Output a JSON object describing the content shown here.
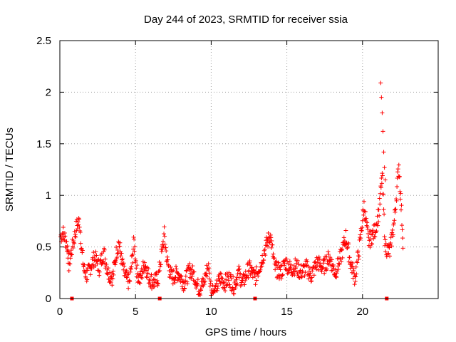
{
  "chart_data": {
    "type": "scatter",
    "title": "Day 244 of 2023, SRMTID for receiver ssia",
    "xlabel": "GPS time / hours",
    "ylabel": "SRMTID / TECUs",
    "xlim": [
      0,
      25
    ],
    "ylim": [
      0,
      2.5
    ],
    "x_ticks": [
      0,
      5,
      10,
      15,
      20
    ],
    "x_tick_labels": [
      "0",
      "5",
      "10",
      "15",
      "20"
    ],
    "y_ticks": [
      0,
      0.5,
      1,
      1.5,
      2,
      2.5
    ],
    "y_tick_labels": [
      "0",
      "0.5",
      "1",
      "1.5",
      "2",
      "2.5"
    ],
    "grid": true,
    "marker": "+",
    "colors": {
      "series": "#ff0000",
      "axes": "#000000",
      "grid": "#a0a0a0"
    },
    "series": [
      {
        "name": "SRMTID",
        "x": [
          0.05,
          0.2,
          0.35,
          0.5,
          0.6,
          1.1,
          1.3,
          1.45,
          1.6,
          1.8,
          2.0,
          2.3,
          2.6,
          2.9,
          3.2,
          3.5,
          3.7,
          3.9,
          4.1,
          4.3,
          4.6,
          4.9,
          5.1,
          5.3,
          5.6,
          5.9,
          6.2,
          6.5,
          6.9,
          7.1,
          7.4,
          7.8,
          8.2,
          8.6,
          8.9,
          9.2,
          9.5,
          9.8,
          10.0,
          10.3,
          10.6,
          10.9,
          11.2,
          11.5,
          11.8,
          12.1,
          12.5,
          12.9,
          13.3,
          13.6,
          13.9,
          14.2,
          14.6,
          14.9,
          15.3,
          15.6,
          15.9,
          16.3,
          16.6,
          17.0,
          17.4,
          17.8,
          18.2,
          18.6,
          18.9,
          19.2,
          19.5,
          19.8,
          20.1,
          20.4,
          20.8,
          21.1,
          21.3,
          21.5,
          21.8,
          22.1,
          22.4,
          22.7
        ],
        "y": [
          0.6,
          0.64,
          0.58,
          0.5,
          0.33,
          0.7,
          0.75,
          0.45,
          0.28,
          0.22,
          0.3,
          0.4,
          0.3,
          0.45,
          0.25,
          0.2,
          0.42,
          0.55,
          0.35,
          0.22,
          0.15,
          0.55,
          0.25,
          0.18,
          0.35,
          0.2,
          0.15,
          0.2,
          0.62,
          0.35,
          0.2,
          0.25,
          0.15,
          0.28,
          0.22,
          0.08,
          0.15,
          0.32,
          0.1,
          0.08,
          0.2,
          0.15,
          0.2,
          0.12,
          0.25,
          0.15,
          0.3,
          0.2,
          0.35,
          0.5,
          0.62,
          0.3,
          0.25,
          0.35,
          0.28,
          0.32,
          0.25,
          0.3,
          0.22,
          0.35,
          0.3,
          0.4,
          0.25,
          0.42,
          0.6,
          0.35,
          0.2,
          0.5,
          0.9,
          0.55,
          0.65,
          0.85,
          1.2,
          0.5,
          0.45,
          0.75,
          1.3,
          0.5
        ],
        "isolated_points": {
          "x": [
            21.2,
            21.25,
            21.3,
            21.35,
            21.4,
            21.45,
            21.5
          ],
          "y": [
            2.09,
            1.95,
            1.8,
            1.62,
            1.42,
            1.27,
            1.15
          ]
        },
        "zero_markers_x": [
          0.8,
          6.6,
          12.9,
          21.6
        ]
      }
    ]
  }
}
